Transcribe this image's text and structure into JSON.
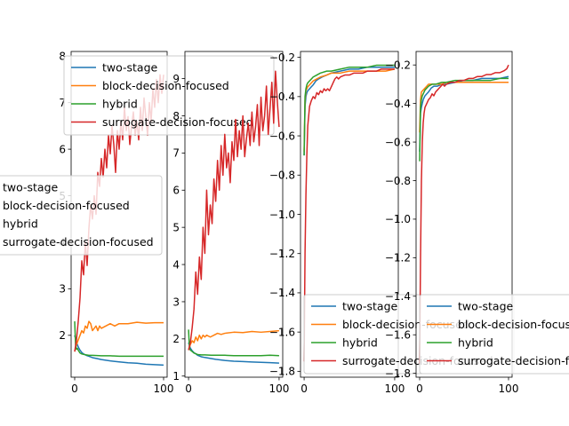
{
  "chart_data": [
    {
      "type": "line",
      "xlim": [
        -4,
        104
      ],
      "ylim": [
        1.1,
        8.1
      ],
      "xticks": [
        0,
        100
      ],
      "yticks": [
        2,
        3,
        4,
        5,
        6,
        7,
        8
      ],
      "tick_labels_x": [
        "0",
        "100"
      ],
      "tick_labels_y": [
        "2",
        "3",
        "4",
        "5",
        "6",
        "7",
        "8"
      ],
      "legend_labels": [
        "two-stage",
        "block-decision-focused",
        "hybrid",
        "surrogate-decision-focused"
      ],
      "series": [
        {
          "name": "two-stage",
          "color": "#1f77b4",
          "x": [
            0,
            2,
            4,
            6,
            8,
            10,
            13,
            16,
            20,
            25,
            30,
            40,
            50,
            60,
            70,
            80,
            90,
            100
          ],
          "y": [
            2.0,
            1.85,
            1.75,
            1.68,
            1.63,
            1.6,
            1.57,
            1.55,
            1.52,
            1.5,
            1.48,
            1.45,
            1.43,
            1.41,
            1.4,
            1.38,
            1.37,
            1.36
          ]
        },
        {
          "name": "block-decision-focused",
          "color": "#ff7f0e",
          "x": [
            0,
            2,
            4,
            6,
            8,
            10,
            12,
            14,
            16,
            18,
            20,
            22,
            24,
            26,
            28,
            30,
            35,
            40,
            45,
            50,
            60,
            70,
            80,
            90,
            100
          ],
          "y": [
            1.65,
            1.8,
            1.9,
            2.0,
            2.1,
            2.05,
            2.2,
            2.15,
            2.3,
            2.25,
            2.1,
            2.15,
            2.2,
            2.1,
            2.2,
            2.15,
            2.2,
            2.25,
            2.2,
            2.25,
            2.25,
            2.28,
            2.26,
            2.27,
            2.27
          ]
        },
        {
          "name": "hybrid",
          "color": "#2ca02c",
          "x": [
            0,
            1,
            2,
            3,
            4,
            6,
            8,
            10,
            13,
            16,
            20,
            30,
            40,
            50,
            60,
            70,
            80,
            90,
            100
          ],
          "y": [
            2.3,
            1.8,
            1.7,
            1.72,
            1.68,
            1.62,
            1.6,
            1.59,
            1.58,
            1.57,
            1.57,
            1.56,
            1.56,
            1.55,
            1.55,
            1.55,
            1.55,
            1.55,
            1.55
          ]
        },
        {
          "name": "surrogate-decision-focused",
          "color": "#d62728",
          "x": [
            0,
            2,
            4,
            6,
            8,
            10,
            12,
            14,
            16,
            18,
            20,
            22,
            24,
            26,
            28,
            30,
            32,
            34,
            36,
            38,
            40,
            42,
            44,
            46,
            48,
            50,
            52,
            54,
            56,
            58,
            60,
            62,
            64,
            66,
            68,
            70,
            72,
            74,
            76,
            78,
            80,
            82,
            84,
            86,
            88,
            90,
            92,
            94,
            96,
            98,
            100
          ],
          "y": [
            1.65,
            1.9,
            2.3,
            2.8,
            3.6,
            3.3,
            4.0,
            3.5,
            4.3,
            4.8,
            4.5,
            5.0,
            4.6,
            5.5,
            5.2,
            5.8,
            5.4,
            6.0,
            5.6,
            6.3,
            5.9,
            6.5,
            6.1,
            5.5,
            6.4,
            6.0,
            6.6,
            6.2,
            6.9,
            6.4,
            6.7,
            6.1,
            6.5,
            6.8,
            6.3,
            6.6,
            6.2,
            6.9,
            6.4,
            7.1,
            6.7,
            6.3,
            7.0,
            6.6,
            7.3,
            6.9,
            7.5,
            7.0,
            7.6,
            7.2,
            7.6
          ]
        }
      ]
    },
    {
      "type": "line",
      "xlim": [
        -4,
        104
      ],
      "ylim": [
        0.97,
        9.73
      ],
      "xticks": [
        0,
        100
      ],
      "yticks": [
        1,
        2,
        3,
        4,
        5,
        6,
        7,
        8,
        9
      ],
      "tick_labels_x": [
        "0",
        "100"
      ],
      "tick_labels_y": [
        "1",
        "2",
        "3",
        "4",
        "5",
        "6",
        "7",
        "8",
        "9"
      ],
      "series": [
        {
          "name": "two-stage",
          "color": "#1f77b4",
          "x": [
            0,
            2,
            4,
            6,
            8,
            10,
            14,
            18,
            25,
            30,
            40,
            50,
            60,
            70,
            80,
            90,
            100
          ],
          "y": [
            1.9,
            1.75,
            1.68,
            1.63,
            1.6,
            1.56,
            1.52,
            1.5,
            1.47,
            1.45,
            1.42,
            1.4,
            1.39,
            1.38,
            1.37,
            1.36,
            1.35
          ]
        },
        {
          "name": "block-decision-focused",
          "color": "#ff7f0e",
          "x": [
            0,
            2,
            4,
            6,
            8,
            10,
            12,
            14,
            16,
            18,
            20,
            24,
            28,
            32,
            36,
            40,
            50,
            60,
            70,
            80,
            90,
            100
          ],
          "y": [
            1.7,
            1.85,
            1.95,
            1.9,
            2.05,
            1.95,
            2.1,
            2.0,
            2.1,
            2.05,
            2.1,
            2.05,
            2.1,
            2.15,
            2.12,
            2.15,
            2.18,
            2.17,
            2.2,
            2.18,
            2.2,
            2.22
          ]
        },
        {
          "name": "hybrid",
          "color": "#2ca02c",
          "x": [
            0,
            1,
            2,
            4,
            6,
            8,
            10,
            14,
            18,
            25,
            30,
            40,
            50,
            60,
            70,
            80,
            90,
            100
          ],
          "y": [
            2.25,
            1.75,
            1.7,
            1.66,
            1.62,
            1.6,
            1.58,
            1.57,
            1.57,
            1.56,
            1.56,
            1.56,
            1.55,
            1.55,
            1.55,
            1.55,
            1.56,
            1.55
          ]
        },
        {
          "name": "surrogate-decision-focused",
          "color": "#d62728",
          "x": [
            0,
            2,
            4,
            6,
            8,
            10,
            12,
            14,
            16,
            18,
            20,
            22,
            24,
            26,
            28,
            30,
            32,
            34,
            36,
            38,
            40,
            42,
            44,
            46,
            48,
            50,
            52,
            54,
            56,
            58,
            60,
            62,
            64,
            66,
            68,
            70,
            72,
            74,
            76,
            78,
            80,
            82,
            84,
            86,
            88,
            90,
            92,
            94,
            96,
            98,
            100
          ],
          "y": [
            1.7,
            1.9,
            2.3,
            2.8,
            3.8,
            3.2,
            4.2,
            3.6,
            5.0,
            4.3,
            6.0,
            4.8,
            5.6,
            5.1,
            6.3,
            5.7,
            6.8,
            6.0,
            7.2,
            6.4,
            7.5,
            6.6,
            7.0,
            6.2,
            7.3,
            6.8,
            7.9,
            6.9,
            7.6,
            7.1,
            8.0,
            6.9,
            7.4,
            7.8,
            7.2,
            8.1,
            7.3,
            7.7,
            8.3,
            7.2,
            8.5,
            7.6,
            8.0,
            8.8,
            7.5,
            8.2,
            8.9,
            7.8,
            9.2,
            8.4,
            7.7
          ]
        }
      ]
    },
    {
      "type": "line",
      "xlim": [
        -4,
        104
      ],
      "ylim": [
        -1.83,
        -0.17
      ],
      "xticks": [
        0,
        100
      ],
      "yticks": [
        -0.2,
        -0.4,
        -0.6,
        -0.8,
        -1.0,
        -1.2,
        -1.4,
        -1.6,
        -1.8
      ],
      "tick_labels_x": [
        "0",
        "100"
      ],
      "tick_labels_y": [
        "−0.2",
        "−0.4",
        "−0.6",
        "−0.8",
        "−1.0",
        "−1.2",
        "−1.4",
        "−1.6",
        "−1.8"
      ],
      "legend_labels": [
        "two-stage",
        "block-decision-focused",
        "hybrid",
        "surrogate-decision-focused"
      ],
      "series": [
        {
          "name": "two-stage",
          "color": "#1f77b4",
          "x": [
            0,
            1,
            2,
            3,
            4,
            6,
            8,
            10,
            13,
            16,
            20,
            25,
            30,
            40,
            50,
            60,
            70,
            80,
            90,
            100
          ],
          "y": [
            -0.7,
            -0.45,
            -0.4,
            -0.38,
            -0.37,
            -0.36,
            -0.35,
            -0.34,
            -0.32,
            -0.31,
            -0.3,
            -0.29,
            -0.28,
            -0.27,
            -0.26,
            -0.26,
            -0.25,
            -0.25,
            -0.25,
            -0.25
          ]
        },
        {
          "name": "block-decision-focused",
          "color": "#ff7f0e",
          "x": [
            0,
            1,
            2,
            4,
            6,
            8,
            10,
            14,
            18,
            25,
            30,
            40,
            50,
            60,
            70,
            80,
            90,
            100
          ],
          "y": [
            -0.68,
            -0.42,
            -0.37,
            -0.35,
            -0.34,
            -0.33,
            -0.32,
            -0.31,
            -0.3,
            -0.29,
            -0.28,
            -0.28,
            -0.27,
            -0.27,
            -0.27,
            -0.27,
            -0.27,
            -0.26
          ]
        },
        {
          "name": "hybrid",
          "color": "#2ca02c",
          "x": [
            0,
            1,
            2,
            3,
            4,
            6,
            8,
            10,
            14,
            18,
            25,
            30,
            40,
            50,
            60,
            70,
            80,
            90,
            100
          ],
          "y": [
            -0.7,
            -0.4,
            -0.36,
            -0.34,
            -0.33,
            -0.32,
            -0.31,
            -0.3,
            -0.29,
            -0.28,
            -0.27,
            -0.27,
            -0.26,
            -0.25,
            -0.25,
            -0.25,
            -0.24,
            -0.24,
            -0.24
          ]
        },
        {
          "name": "surrogate-decision-focused",
          "color": "#d62728",
          "x": [
            0,
            1,
            2,
            3,
            4,
            5,
            6,
            8,
            10,
            12,
            14,
            16,
            18,
            20,
            22,
            24,
            26,
            28,
            30,
            32,
            34,
            36,
            38,
            40,
            45,
            50,
            55,
            60,
            65,
            70,
            75,
            80,
            85,
            90,
            95,
            100
          ],
          "y": [
            -1.75,
            -1.2,
            -0.9,
            -0.7,
            -0.55,
            -0.5,
            -0.45,
            -0.42,
            -0.4,
            -0.41,
            -0.38,
            -0.39,
            -0.37,
            -0.38,
            -0.36,
            -0.37,
            -0.36,
            -0.37,
            -0.35,
            -0.33,
            -0.31,
            -0.3,
            -0.31,
            -0.3,
            -0.29,
            -0.29,
            -0.28,
            -0.28,
            -0.28,
            -0.27,
            -0.27,
            -0.27,
            -0.26,
            -0.26,
            -0.26,
            -0.26
          ]
        }
      ]
    },
    {
      "type": "line",
      "xlim": [
        -4,
        104
      ],
      "ylim": [
        -1.82,
        -0.13
      ],
      "xticks": [
        0,
        100
      ],
      "yticks": [
        -0.2,
        -0.4,
        -0.6,
        -0.8,
        -1.0,
        -1.2,
        -1.4,
        -1.6,
        -1.8
      ],
      "tick_labels_x": [
        "0",
        "100"
      ],
      "tick_labels_y": [
        "−0.2",
        "−0.4",
        "−0.6",
        "−0.8",
        "−1.0",
        "−1.2",
        "−1.4",
        "−1.6",
        "−1.8"
      ],
      "legend_labels": [
        "two-stage",
        "block-decision-focused",
        "hybrid",
        "surrogate-decision-focused"
      ],
      "series": [
        {
          "name": "two-stage",
          "color": "#1f77b4",
          "x": [
            0,
            1,
            2,
            3,
            4,
            6,
            8,
            10,
            13,
            16,
            20,
            25,
            30,
            40,
            50,
            60,
            70,
            80,
            90,
            100
          ],
          "y": [
            -0.65,
            -0.45,
            -0.42,
            -0.4,
            -0.38,
            -0.36,
            -0.35,
            -0.34,
            -0.32,
            -0.31,
            -0.31,
            -0.3,
            -0.3,
            -0.29,
            -0.28,
            -0.28,
            -0.27,
            -0.27,
            -0.27,
            -0.26
          ]
        },
        {
          "name": "block-decision-focused",
          "color": "#ff7f0e",
          "x": [
            0,
            1,
            2,
            4,
            6,
            8,
            10,
            14,
            18,
            25,
            30,
            40,
            50,
            60,
            70,
            80,
            90,
            100
          ],
          "y": [
            -0.55,
            -0.38,
            -0.34,
            -0.33,
            -0.32,
            -0.31,
            -0.3,
            -0.3,
            -0.3,
            -0.3,
            -0.29,
            -0.29,
            -0.29,
            -0.29,
            -0.29,
            -0.29,
            -0.29,
            -0.29
          ]
        },
        {
          "name": "hybrid",
          "color": "#2ca02c",
          "x": [
            0,
            1,
            2,
            3,
            4,
            6,
            8,
            10,
            14,
            18,
            25,
            30,
            40,
            50,
            60,
            70,
            80,
            90,
            100
          ],
          "y": [
            -0.7,
            -0.42,
            -0.38,
            -0.36,
            -0.35,
            -0.33,
            -0.32,
            -0.31,
            -0.3,
            -0.3,
            -0.29,
            -0.29,
            -0.28,
            -0.28,
            -0.28,
            -0.28,
            -0.28,
            -0.27,
            -0.27
          ]
        },
        {
          "name": "surrogate-decision-focused",
          "color": "#d62728",
          "x": [
            0,
            1,
            2,
            3,
            4,
            5,
            6,
            8,
            10,
            12,
            14,
            16,
            18,
            20,
            22,
            24,
            26,
            28,
            30,
            35,
            40,
            45,
            50,
            55,
            60,
            65,
            70,
            75,
            80,
            85,
            90,
            95,
            98,
            100
          ],
          "y": [
            -1.75,
            -1.2,
            -0.8,
            -0.6,
            -0.5,
            -0.45,
            -0.42,
            -0.4,
            -0.38,
            -0.37,
            -0.35,
            -0.36,
            -0.34,
            -0.33,
            -0.32,
            -0.31,
            -0.3,
            -0.31,
            -0.3,
            -0.29,
            -0.29,
            -0.28,
            -0.28,
            -0.27,
            -0.27,
            -0.26,
            -0.26,
            -0.25,
            -0.25,
            -0.24,
            -0.24,
            -0.23,
            -0.22,
            -0.2
          ]
        }
      ]
    }
  ],
  "overlay_legend": {
    "labels": [
      "two-stage",
      "block-decision-focused",
      "hybrid",
      "surrogate-decision-focused"
    ],
    "colors": [
      "#1f77b4",
      "#ff7f0e",
      "#2ca02c",
      "#d62728"
    ]
  }
}
